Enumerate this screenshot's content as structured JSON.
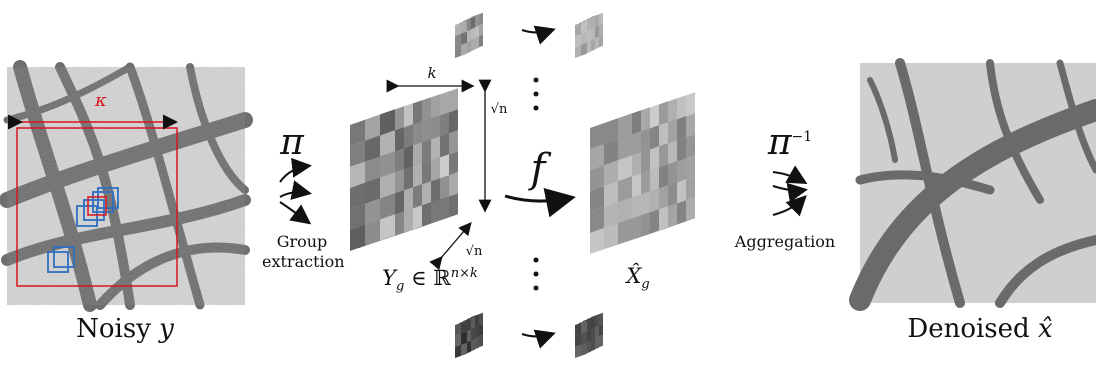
{
  "noisy_image": {
    "caption_text": "Noisy",
    "caption_var": "y",
    "window_label": "κ"
  },
  "grouping": {
    "symbol": "π",
    "label_line1": "Group",
    "label_line2": "extraction"
  },
  "noisy_group": {
    "top_label": "k",
    "side_label": "√n",
    "depth_label": "√n",
    "formula": "Y",
    "formula_sub": "g",
    "formula_rest": "∈ ℝ",
    "formula_sup": "n×k"
  },
  "filter": {
    "symbol": "f"
  },
  "denoised_group": {
    "label": "X̂",
    "label_sub": "g"
  },
  "aggregation": {
    "symbol": "π",
    "superscript": "−1",
    "label": "Aggregation"
  },
  "denoised_image": {
    "caption_text": "Denoised",
    "caption_var": "x̂"
  },
  "colors": {
    "window": "#d9141b",
    "patch": "#2f6fc2",
    "arrow": "#111111"
  }
}
